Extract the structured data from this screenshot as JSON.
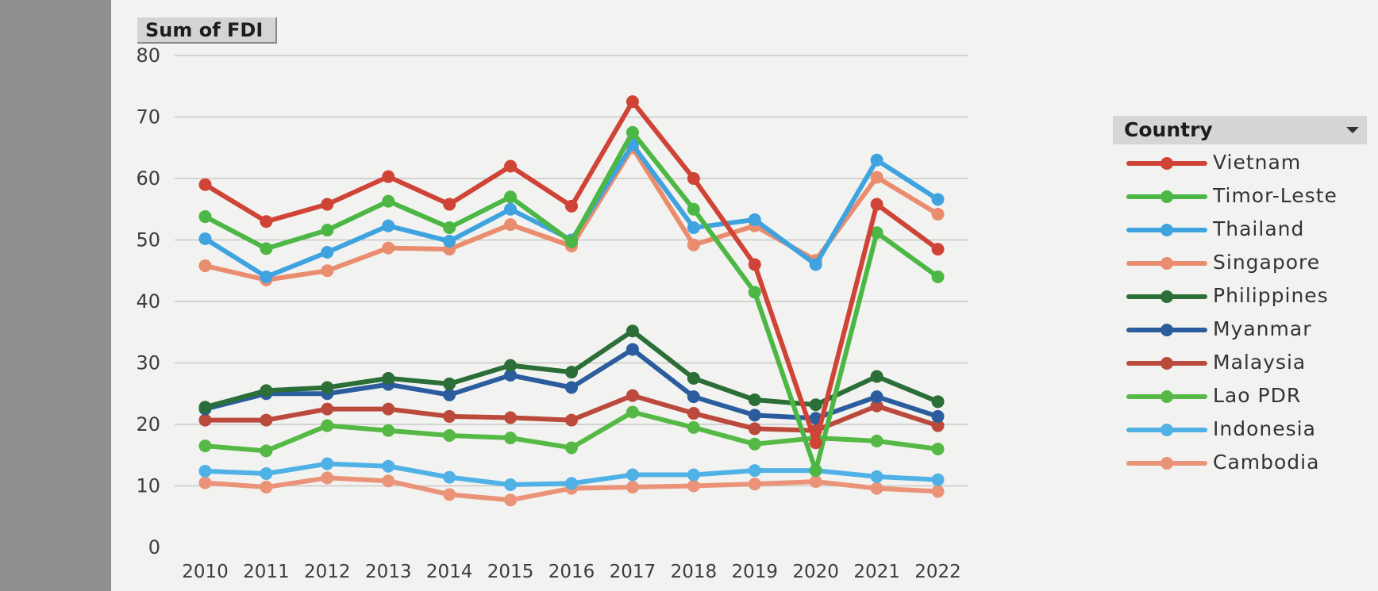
{
  "pivot": {
    "field_label": "Sum of FDI"
  },
  "legend": {
    "title": "Country"
  },
  "chart_data": {
    "type": "line",
    "x": [
      "2010",
      "2011",
      "2012",
      "2013",
      "2014",
      "2015",
      "2016",
      "2017",
      "2018",
      "2019",
      "2020",
      "2021",
      "2022"
    ],
    "ylim": [
      0,
      80
    ],
    "yticks": [
      0,
      10,
      20,
      30,
      40,
      50,
      60,
      70,
      80
    ],
    "grid": true,
    "legend_position": "right",
    "series": [
      {
        "name": "Vietnam",
        "color": "#cf4436",
        "values": [
          59,
          53,
          55.8,
          60.3,
          55.8,
          62,
          55.5,
          72.5,
          60,
          46,
          17,
          55.8,
          48.5
        ]
      },
      {
        "name": "Timor-Leste",
        "color": "#4cb744",
        "values": [
          53.8,
          48.6,
          51.6,
          56.3,
          52,
          57,
          49.7,
          67.5,
          55,
          41.5,
          12.5,
          51.2,
          44
        ]
      },
      {
        "name": "Thailand",
        "color": "#3fa3e0",
        "values": [
          50.2,
          44,
          48,
          52.3,
          49.8,
          55,
          50,
          65.5,
          52,
          53.3,
          46,
          63,
          56.6
        ]
      },
      {
        "name": "Singapore",
        "color": "#ea8c6e",
        "values": [
          45.8,
          43.5,
          45,
          48.7,
          48.5,
          52.5,
          49,
          65,
          49.2,
          52.3,
          46.7,
          60.2,
          54.2
        ]
      },
      {
        "name": "Philippines",
        "color": "#2c6e37",
        "values": [
          22.8,
          25.5,
          26,
          27.5,
          26.6,
          29.6,
          28.5,
          35.2,
          27.5,
          24,
          23.2,
          27.8,
          23.7
        ]
      },
      {
        "name": "Myanmar",
        "color": "#2b5d9e",
        "values": [
          22.5,
          25,
          25,
          26.5,
          24.8,
          28,
          26,
          32.2,
          24.5,
          21.5,
          21,
          24.5,
          21.3
        ]
      },
      {
        "name": "Malaysia",
        "color": "#bb4a3c",
        "values": [
          20.7,
          20.7,
          22.5,
          22.5,
          21.3,
          21.1,
          20.7,
          24.7,
          21.8,
          19.3,
          19,
          23,
          19.8
        ]
      },
      {
        "name": "Lao PDR",
        "color": "#56b946",
        "values": [
          16.5,
          15.7,
          19.8,
          19,
          18.2,
          17.8,
          16.2,
          22,
          19.5,
          16.8,
          17.8,
          17.3,
          16
        ]
      },
      {
        "name": "Indonesia",
        "color": "#50b1e6",
        "values": [
          12.4,
          12,
          13.6,
          13.2,
          11.4,
          10.2,
          10.4,
          11.8,
          11.8,
          12.5,
          12.5,
          11.5,
          11
        ]
      },
      {
        "name": "Cambodia",
        "color": "#eb9379",
        "values": [
          10.5,
          9.8,
          11.3,
          10.8,
          8.6,
          7.7,
          9.6,
          9.8,
          10,
          10.3,
          10.7,
          9.6,
          9.1
        ]
      }
    ]
  }
}
